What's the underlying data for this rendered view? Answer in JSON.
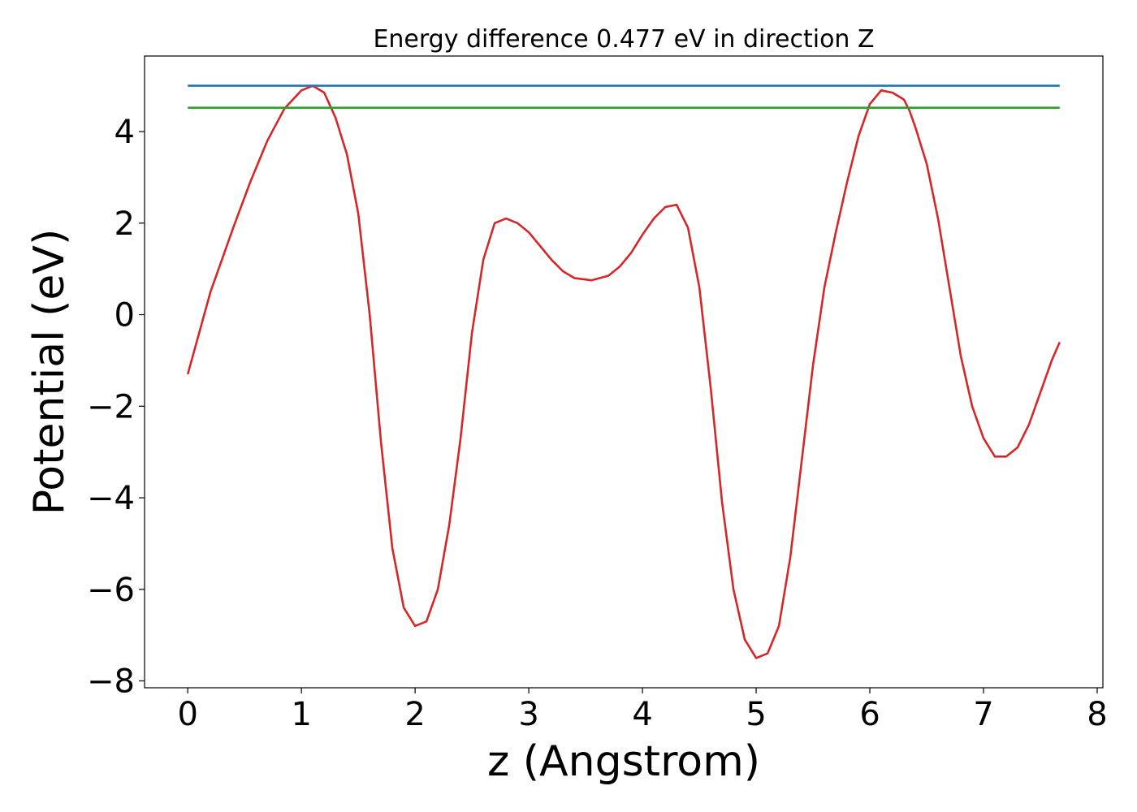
{
  "chart_data": {
    "type": "line",
    "title": "Energy difference 0.477 eV in direction Z",
    "xlabel": "z (Angstrom)",
    "ylabel": "Potential (eV)",
    "xlim": [
      -0.38,
      8.05
    ],
    "ylim": [
      -8.15,
      5.65
    ],
    "xticks": [
      0,
      1,
      2,
      3,
      4,
      5,
      6,
      7,
      8
    ],
    "yticks": [
      -8,
      -6,
      -4,
      -2,
      0,
      2,
      4
    ],
    "xtick_labels": [
      "0",
      "1",
      "2",
      "3",
      "4",
      "5",
      "6",
      "7",
      "8"
    ],
    "ytick_labels": [
      "−8",
      "−6",
      "−4",
      "−2",
      "0",
      "2",
      "4"
    ],
    "grid": false,
    "series": [
      {
        "color": "#d62728",
        "x": [
          0.0,
          0.1,
          0.2,
          0.3,
          0.4,
          0.55,
          0.7,
          0.85,
          1.0,
          1.1,
          1.2,
          1.3,
          1.4,
          1.5,
          1.6,
          1.7,
          1.8,
          1.9,
          2.0,
          2.1,
          2.2,
          2.3,
          2.4,
          2.5,
          2.6,
          2.7,
          2.8,
          2.9,
          3.0,
          3.1,
          3.2,
          3.3,
          3.4,
          3.55,
          3.7,
          3.8,
          3.9,
          4.0,
          4.1,
          4.2,
          4.3,
          4.4,
          4.5,
          4.6,
          4.7,
          4.8,
          4.9,
          5.0,
          5.1,
          5.2,
          5.3,
          5.4,
          5.5,
          5.6,
          5.7,
          5.8,
          5.9,
          6.0,
          6.1,
          6.2,
          6.3,
          6.35,
          6.4,
          6.5,
          6.6,
          6.7,
          6.8,
          6.9,
          7.0,
          7.1,
          7.2,
          7.3,
          7.4,
          7.5,
          7.6,
          7.67
        ],
        "y": [
          -1.3,
          -0.4,
          0.5,
          1.2,
          1.9,
          2.9,
          3.8,
          4.5,
          4.9,
          5.0,
          4.85,
          4.3,
          3.5,
          2.2,
          0.0,
          -2.8,
          -5.1,
          -6.4,
          -6.8,
          -6.7,
          -6.0,
          -4.6,
          -2.7,
          -0.4,
          1.2,
          2.0,
          2.1,
          2.0,
          1.8,
          1.5,
          1.2,
          0.95,
          0.8,
          0.75,
          0.85,
          1.05,
          1.35,
          1.75,
          2.1,
          2.35,
          2.4,
          1.9,
          0.6,
          -1.6,
          -4.1,
          -6.0,
          -7.1,
          -7.5,
          -7.4,
          -6.8,
          -5.3,
          -3.2,
          -1.1,
          0.6,
          1.8,
          2.9,
          3.9,
          4.6,
          4.9,
          4.85,
          4.7,
          4.45,
          4.1,
          3.3,
          2.1,
          0.6,
          -0.9,
          -2.0,
          -2.7,
          -3.1,
          -3.1,
          -2.9,
          -2.4,
          -1.7,
          -1.0,
          -0.6
        ]
      },
      {
        "color": "#1f77b4",
        "x": [
          0.0,
          7.67
        ],
        "y": [
          5.0,
          5.0
        ]
      },
      {
        "color": "#2ca02c",
        "x": [
          0.0,
          7.67
        ],
        "y": [
          4.52,
          4.52
        ]
      }
    ]
  }
}
